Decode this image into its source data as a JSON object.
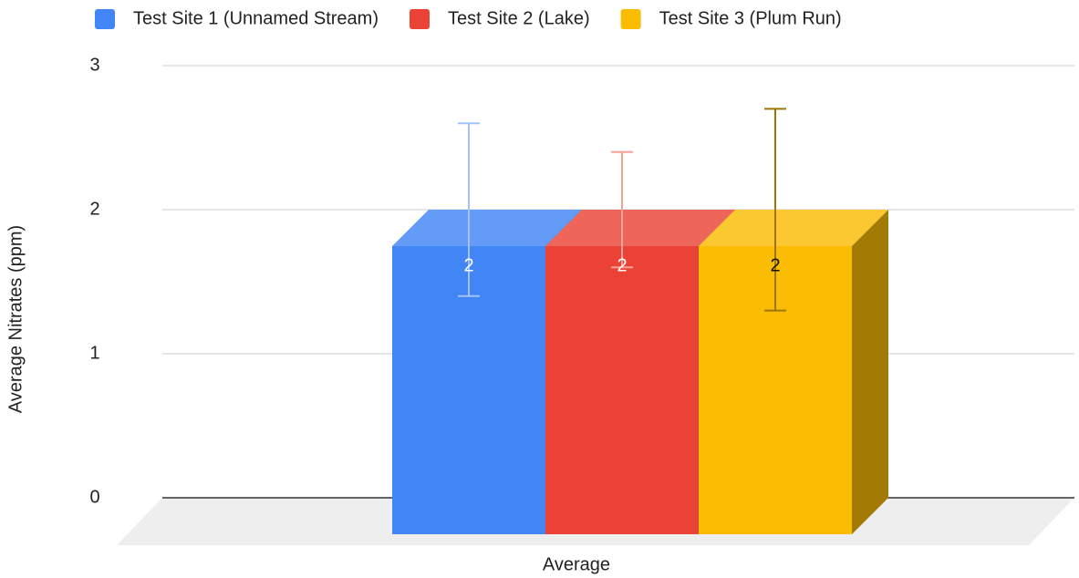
{
  "chart_data": {
    "type": "bar",
    "categories": [
      "Average"
    ],
    "x_label": "Average",
    "y_label": "Average Nitrates (ppm)",
    "series": [
      {
        "name": "Test Site 1 (Unnamed Stream)",
        "color": "#4285f4",
        "values": [
          2
        ],
        "errors": [
          0.6
        ]
      },
      {
        "name": "Test Site 2 (Lake)",
        "color": "#ea4335",
        "values": [
          2
        ],
        "errors": [
          0.4
        ]
      },
      {
        "name": "Test Site 3 (Plum Run)",
        "color": "#fbbc04",
        "values": [
          2
        ],
        "errors": [
          0.7
        ]
      }
    ],
    "ylim": [
      0,
      3
    ],
    "yticks": [
      0,
      1,
      2,
      3
    ],
    "grid": true,
    "legend": "top"
  }
}
